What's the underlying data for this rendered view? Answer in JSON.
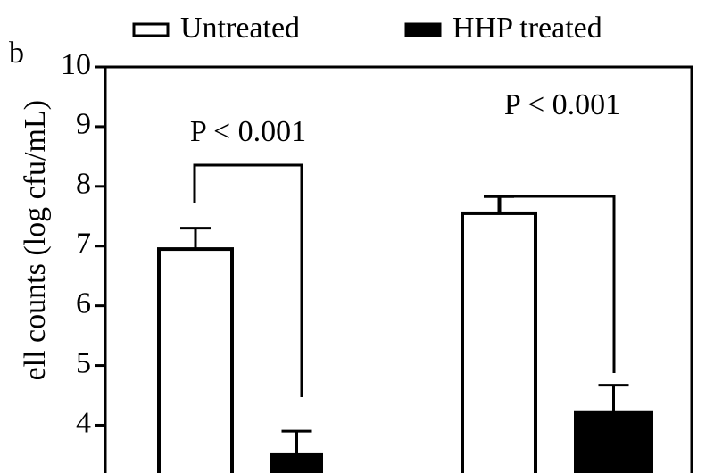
{
  "chart_data": {
    "type": "bar",
    "panel_label": "b",
    "ylabel": "ell counts (log cfu/mL)",
    "categories": [
      null,
      null
    ],
    "series": [
      {
        "name": "Untreated",
        "color": "#ffffff",
        "values": [
          6.95,
          7.55
        ],
        "errors": [
          0.35,
          0.28
        ]
      },
      {
        "name": "HHP treated",
        "color": "#000000",
        "values": [
          3.5,
          4.22
        ],
        "errors": [
          0.4,
          0.45
        ]
      }
    ],
    "annotations": [
      "P < 0.001",
      "P < 0.001"
    ],
    "ylim": [
      3.2,
      10
    ],
    "yticks": [
      4,
      5,
      6,
      7,
      8,
      9,
      10
    ],
    "grid": false,
    "legend": "top"
  }
}
